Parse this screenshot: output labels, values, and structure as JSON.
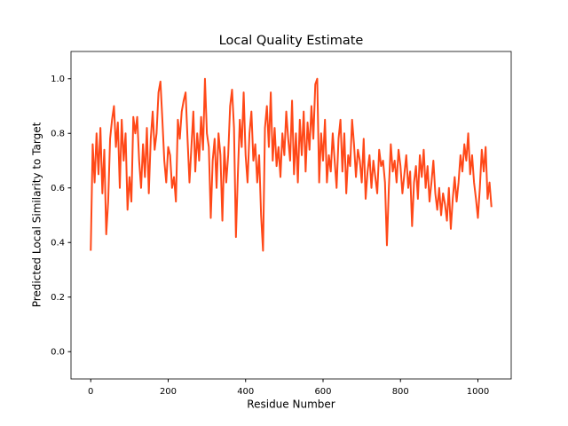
{
  "chart_data": {
    "type": "line",
    "title": "Local Quality Estimate",
    "x_label": "Residue Number",
    "y_label": "Predicted Local Similarity to Target",
    "x": [
      0,
      5,
      10,
      15,
      20,
      25,
      30,
      35,
      40,
      45,
      50,
      55,
      60,
      65,
      70,
      75,
      80,
      85,
      90,
      95,
      100,
      105,
      110,
      115,
      120,
      125,
      130,
      135,
      140,
      145,
      150,
      155,
      160,
      165,
      170,
      175,
      180,
      185,
      190,
      195,
      200,
      205,
      210,
      215,
      220,
      225,
      230,
      235,
      240,
      245,
      250,
      255,
      260,
      265,
      270,
      275,
      280,
      285,
      290,
      295,
      300,
      305,
      310,
      315,
      320,
      325,
      330,
      335,
      340,
      345,
      350,
      355,
      360,
      365,
      370,
      375,
      380,
      385,
      390,
      395,
      400,
      405,
      410,
      415,
      420,
      425,
      430,
      435,
      440,
      445,
      450,
      455,
      460,
      465,
      470,
      475,
      480,
      485,
      490,
      495,
      500,
      505,
      510,
      515,
      520,
      525,
      530,
      535,
      540,
      545,
      550,
      555,
      560,
      565,
      570,
      575,
      580,
      585,
      590,
      595,
      600,
      605,
      610,
      615,
      620,
      625,
      630,
      635,
      640,
      645,
      650,
      655,
      660,
      665,
      670,
      675,
      680,
      685,
      690,
      695,
      700,
      705,
      710,
      715,
      720,
      725,
      730,
      735,
      740,
      745,
      750,
      755,
      760,
      765,
      770,
      775,
      780,
      785,
      790,
      795,
      800,
      805,
      810,
      815,
      820,
      825,
      830,
      835,
      840,
      845,
      850,
      855,
      860,
      865,
      870,
      875,
      880,
      885,
      890,
      895,
      900,
      905,
      910,
      915,
      920,
      925,
      930,
      935,
      940,
      945,
      950,
      955,
      960,
      965,
      970,
      975,
      980,
      985,
      990,
      995,
      1000,
      1005,
      1010,
      1015,
      1020,
      1025,
      1030,
      1035
    ],
    "series": [
      {
        "color": "#ff4818",
        "values": [
          0.37,
          0.76,
          0.62,
          0.8,
          0.65,
          0.82,
          0.58,
          0.74,
          0.43,
          0.55,
          0.78,
          0.85,
          0.9,
          0.75,
          0.84,
          0.6,
          0.85,
          0.7,
          0.8,
          0.52,
          0.64,
          0.55,
          0.86,
          0.8,
          0.86,
          0.7,
          0.6,
          0.76,
          0.64,
          0.82,
          0.58,
          0.78,
          0.88,
          0.74,
          0.8,
          0.95,
          0.99,
          0.85,
          0.7,
          0.62,
          0.75,
          0.72,
          0.6,
          0.64,
          0.55,
          0.85,
          0.78,
          0.88,
          0.92,
          0.95,
          0.78,
          0.62,
          0.75,
          0.88,
          0.66,
          0.8,
          0.7,
          0.86,
          0.74,
          1.0,
          0.8,
          0.75,
          0.49,
          0.7,
          0.78,
          0.6,
          0.8,
          0.72,
          0.48,
          0.75,
          0.62,
          0.72,
          0.9,
          0.96,
          0.82,
          0.42,
          0.65,
          0.85,
          0.75,
          0.95,
          0.72,
          0.62,
          0.8,
          0.88,
          0.7,
          0.76,
          0.62,
          0.72,
          0.5,
          0.37,
          0.82,
          0.9,
          0.75,
          0.95,
          0.7,
          0.82,
          0.68,
          0.75,
          0.64,
          0.8,
          0.72,
          0.88,
          0.78,
          0.7,
          0.92,
          0.65,
          0.8,
          0.62,
          0.85,
          0.72,
          0.88,
          0.66,
          0.84,
          0.74,
          0.9,
          0.78,
          0.98,
          1.0,
          0.62,
          0.8,
          0.7,
          0.85,
          0.62,
          0.72,
          0.66,
          0.8,
          0.7,
          0.6,
          0.78,
          0.85,
          0.66,
          0.8,
          0.58,
          0.72,
          0.68,
          0.85,
          0.76,
          0.64,
          0.74,
          0.7,
          0.62,
          0.78,
          0.56,
          0.66,
          0.72,
          0.6,
          0.7,
          0.64,
          0.58,
          0.74,
          0.68,
          0.7,
          0.62,
          0.39,
          0.6,
          0.76,
          0.66,
          0.7,
          0.62,
          0.74,
          0.68,
          0.58,
          0.65,
          0.72,
          0.6,
          0.66,
          0.46,
          0.62,
          0.68,
          0.56,
          0.72,
          0.64,
          0.74,
          0.6,
          0.68,
          0.55,
          0.62,
          0.7,
          0.58,
          0.52,
          0.6,
          0.5,
          0.58,
          0.54,
          0.48,
          0.6,
          0.45,
          0.56,
          0.64,
          0.55,
          0.62,
          0.72,
          0.66,
          0.76,
          0.7,
          0.8,
          0.65,
          0.72,
          0.62,
          0.56,
          0.49,
          0.6,
          0.74,
          0.66,
          0.75,
          0.56,
          0.62,
          0.53
        ]
      }
    ],
    "xlim": [
      -51,
      1086
    ],
    "xticks": [
      0,
      200,
      400,
      600,
      800,
      1000
    ],
    "ylim": [
      -0.1,
      1.1
    ],
    "yticks": [
      {
        "value": 0,
        "label": "0.0"
      },
      0.2,
      0.4,
      0.6,
      0.8,
      {
        "value": 1,
        "label": "1.0"
      }
    ],
    "grid": false
  }
}
